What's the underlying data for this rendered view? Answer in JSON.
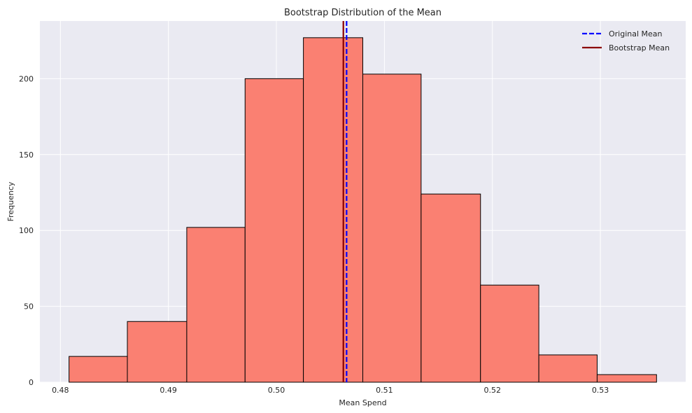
{
  "chart_data": {
    "type": "bar",
    "title": "Bootstrap Distribution of the Mean",
    "xlabel": "Mean Spend",
    "ylabel": "Frequency",
    "bins": [
      {
        "start": 0.4808,
        "end": 0.4862,
        "count": 17
      },
      {
        "start": 0.4862,
        "end": 0.4917,
        "count": 40
      },
      {
        "start": 0.4917,
        "end": 0.4971,
        "count": 102
      },
      {
        "start": 0.4971,
        "end": 0.5025,
        "count": 200
      },
      {
        "start": 0.5025,
        "end": 0.508,
        "count": 227
      },
      {
        "start": 0.508,
        "end": 0.5134,
        "count": 203
      },
      {
        "start": 0.5134,
        "end": 0.5189,
        "count": 124
      },
      {
        "start": 0.5189,
        "end": 0.5243,
        "count": 64
      },
      {
        "start": 0.5243,
        "end": 0.5297,
        "count": 18
      },
      {
        "start": 0.5297,
        "end": 0.5352,
        "count": 5
      }
    ],
    "xlim": [
      0.4781,
      0.5379
    ],
    "ylim": [
      0,
      238
    ],
    "xticks": [
      0.48,
      0.49,
      0.5,
      0.51,
      0.52,
      0.53
    ],
    "xtick_labels": [
      "0.48",
      "0.49",
      "0.50",
      "0.51",
      "0.52",
      "0.53"
    ],
    "yticks": [
      0,
      50,
      100,
      150,
      200
    ],
    "ytick_labels": [
      "0",
      "50",
      "100",
      "150",
      "200"
    ],
    "vlines": [
      {
        "name": "Original Mean",
        "x": 0.5065,
        "color": "#0000ff",
        "style": "dashed"
      },
      {
        "name": "Bootstrap Mean",
        "x": 0.5062,
        "color": "#8b0000",
        "style": "solid"
      }
    ],
    "legend": [
      "Original Mean",
      "Bootstrap Mean"
    ],
    "legend_position": "top-right",
    "grid": true,
    "colors": {
      "bar_fill": "#fa8072",
      "bar_edge": "#000000",
      "plot_background": "#eaeaf2",
      "grid": "#ffffff"
    }
  }
}
